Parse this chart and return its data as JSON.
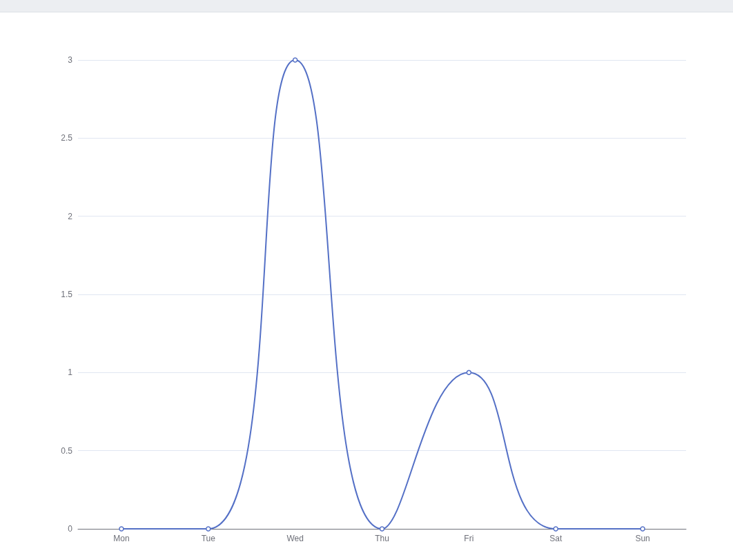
{
  "chart_data": {
    "type": "line",
    "categories": [
      "Mon",
      "Tue",
      "Wed",
      "Thu",
      "Fri",
      "Sat",
      "Sun"
    ],
    "series": [
      {
        "color": "#5470c6",
        "values": [
          0,
          0,
          3,
          0,
          1,
          0,
          0
        ]
      }
    ],
    "ylim": [
      0,
      3
    ],
    "yticks": [
      0,
      0.5,
      1,
      1.5,
      2,
      2.5,
      3
    ],
    "grid": "y",
    "marker": "circle",
    "line_style": "solid"
  }
}
